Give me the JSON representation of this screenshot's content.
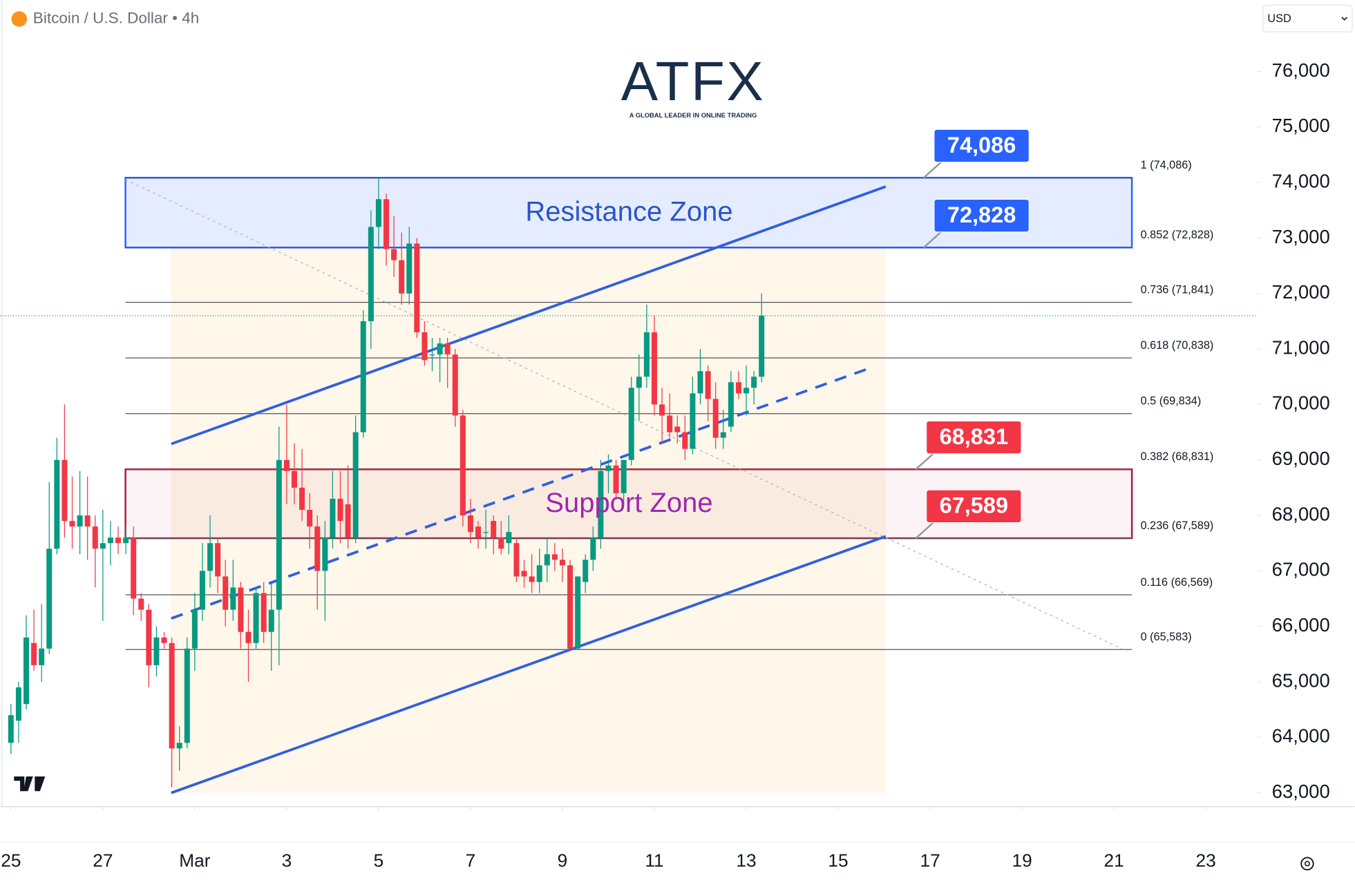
{
  "header": {
    "title": "Bitcoin / U.S. Dollar • 4h",
    "currency": "USD"
  },
  "logo": {
    "name": "ATFX",
    "tagline": "A GLOBAL LEADER IN ONLINE TRADING"
  },
  "chart_data": {
    "type": "candlestick",
    "x": [
      0,
      1,
      2,
      3,
      4,
      5,
      6,
      7,
      8,
      9,
      10,
      11,
      12,
      13,
      14,
      15,
      16,
      17,
      18,
      19,
      20,
      21,
      22,
      23,
      24,
      25,
      26,
      27,
      28,
      29,
      30,
      31,
      32,
      33,
      34,
      35,
      36,
      37,
      38,
      39,
      40,
      41,
      42,
      43,
      44,
      45,
      46,
      47,
      48,
      49,
      50,
      51,
      52,
      53,
      54,
      55,
      56,
      57,
      58,
      59,
      60,
      61,
      62,
      63,
      64,
      65,
      66,
      67,
      68,
      69,
      70,
      71,
      72,
      73,
      74,
      75,
      76,
      77,
      78,
      79,
      80,
      81,
      82,
      83,
      84,
      85,
      86,
      87,
      88,
      89,
      90,
      91,
      92,
      93,
      94,
      95,
      96,
      97,
      98
    ],
    "open": [
      63900,
      64300,
      64600,
      65700,
      65300,
      65600,
      67400,
      69000,
      67900,
      67800,
      68000,
      67800,
      67400,
      67500,
      67600,
      67500,
      67600,
      66500,
      66300,
      65300,
      65800,
      65700,
      63800,
      63900,
      65600,
      66300,
      67000,
      67500,
      66900,
      66300,
      66700,
      65900,
      65700,
      66600,
      65900,
      66300,
      69000,
      68800,
      68500,
      68100,
      67800,
      67000,
      67600,
      68300,
      68200,
      67600,
      69500,
      71500,
      73200,
      73700,
      72800,
      72600,
      72000,
      72900,
      71300,
      70900,
      70900,
      71100,
      70900,
      69800,
      68000,
      67800,
      67700,
      67900,
      67600,
      67500,
      67500,
      67000,
      66900,
      66800,
      67100,
      67300,
      67200,
      67100,
      65600,
      66800,
      67200,
      67600,
      68800,
      68900,
      68400,
      69000,
      70300,
      70500,
      71300,
      70000,
      69800,
      69600,
      69500,
      69200,
      70200,
      70600,
      70100,
      69400,
      69600,
      70400,
      70200,
      70300,
      70500
    ],
    "high": [
      64600,
      65000,
      66200,
      66300,
      66400,
      68600,
      69400,
      70000,
      68700,
      68800,
      68700,
      68000,
      68100,
      67900,
      67800,
      67800,
      67800,
      66600,
      66400,
      66000,
      65900,
      65800,
      64200,
      65800,
      66600,
      67500,
      68000,
      67600,
      67200,
      67200,
      66800,
      66300,
      66700,
      66800,
      66800,
      69600,
      70000,
      69300,
      69200,
      68400,
      68000,
      67900,
      68800,
      68800,
      68900,
      69800,
      71700,
      73500,
      74086,
      73800,
      73400,
      73100,
      73200,
      73000,
      71500,
      71200,
      71200,
      71200,
      71000,
      69900,
      68300,
      67900,
      68100,
      68000,
      67900,
      68000,
      67600,
      67200,
      67300,
      67400,
      67600,
      67500,
      67400,
      67200,
      66900,
      67300,
      67800,
      69000,
      69100,
      69000,
      69000,
      70500,
      70900,
      71800,
      71600,
      70300,
      70200,
      69800,
      69800,
      70500,
      71000,
      70700,
      70400,
      69900,
      70600,
      70600,
      70700,
      70600,
      72000
    ],
    "low": [
      63700,
      63900,
      64500,
      65200,
      65000,
      65500,
      67300,
      67600,
      67400,
      67300,
      67200,
      66700,
      66100,
      67100,
      67300,
      67300,
      66200,
      66100,
      64900,
      65100,
      65600,
      63100,
      63400,
      63800,
      65200,
      66100,
      66700,
      66600,
      66000,
      66100,
      65600,
      65000,
      65600,
      65700,
      65200,
      65300,
      68200,
      68200,
      67900,
      67400,
      66300,
      66100,
      67400,
      67500,
      67400,
      67500,
      69400,
      71000,
      72800,
      72500,
      72300,
      71800,
      71800,
      71200,
      70700,
      70600,
      70400,
      70300,
      69600,
      67800,
      67500,
      67400,
      67400,
      67300,
      67300,
      67300,
      66800,
      66700,
      66600,
      66600,
      66800,
      67000,
      66800,
      65600,
      65583,
      66600,
      67000,
      67400,
      68400,
      68300,
      68200,
      68900,
      69700,
      70300,
      69800,
      69300,
      69400,
      69300,
      69000,
      69100,
      70000,
      69700,
      69200,
      69200,
      69500,
      70100,
      69800,
      70000,
      70400
    ],
    "close": [
      64400,
      64900,
      65800,
      65300,
      65600,
      67400,
      69000,
      67900,
      67800,
      68000,
      67800,
      67400,
      67500,
      67600,
      67500,
      67600,
      66500,
      66300,
      65300,
      65800,
      65700,
      63800,
      63900,
      65600,
      66300,
      67000,
      67500,
      66900,
      66300,
      66700,
      65900,
      65700,
      66600,
      65900,
      66300,
      69000,
      68800,
      68500,
      68100,
      67800,
      67000,
      67600,
      68300,
      67900,
      67600,
      69500,
      71500,
      73200,
      73700,
      72800,
      72600,
      72000,
      72900,
      71300,
      70800,
      70900,
      71100,
      70900,
      69800,
      68000,
      67700,
      67600,
      67700,
      67600,
      67400,
      67700,
      66900,
      66900,
      66800,
      67100,
      67300,
      67200,
      67100,
      65600,
      66900,
      67200,
      67600,
      68800,
      68900,
      68400,
      69000,
      70300,
      70500,
      71300,
      70000,
      69800,
      69500,
      69500,
      69200,
      70200,
      70600,
      70100,
      69400,
      69500,
      70400,
      70200,
      70300,
      70500,
      71600
    ],
    "up_color": "#089981",
    "down_color": "#f23645",
    "xlim": [
      -1.4,
      162.7
    ],
    "xticks": [
      {
        "value": 0,
        "label": "25"
      },
      {
        "value": 12,
        "label": "27"
      },
      {
        "value": 24,
        "label": "Mar"
      },
      {
        "value": 36,
        "label": "3"
      },
      {
        "value": 48,
        "label": "5"
      },
      {
        "value": 60,
        "label": "7"
      },
      {
        "value": 72,
        "label": "9"
      },
      {
        "value": 84,
        "label": "11"
      },
      {
        "value": 96,
        "label": "13"
      },
      {
        "value": 108,
        "label": "15"
      },
      {
        "value": 120,
        "label": "17"
      },
      {
        "value": 132,
        "label": "19"
      },
      {
        "value": 144,
        "label": "21"
      },
      {
        "value": 156,
        "label": "23"
      }
    ],
    "ylim": [
      62750,
      77290
    ],
    "yticks": [
      {
        "value": 63000,
        "label": "63,000"
      },
      {
        "value": 64000,
        "label": "64,000"
      },
      {
        "value": 65000,
        "label": "65,000"
      },
      {
        "value": 66000,
        "label": "66,000"
      },
      {
        "value": 67000,
        "label": "67,000"
      },
      {
        "value": 68000,
        "label": "68,000"
      },
      {
        "value": 69000,
        "label": "69,000"
      },
      {
        "value": 70000,
        "label": "70,000"
      },
      {
        "value": 71000,
        "label": "71,000"
      },
      {
        "value": 72000,
        "label": "72,000"
      },
      {
        "value": 73000,
        "label": "73,000"
      },
      {
        "value": 74000,
        "label": "74,000"
      },
      {
        "value": 75000,
        "label": "75,000"
      },
      {
        "value": 76000,
        "label": "76,000"
      }
    ],
    "grid": false,
    "fib_levels": [
      {
        "value": 74086,
        "label": "1 (74,086)"
      },
      {
        "value": 72828,
        "label": "0.852 (72,828)"
      },
      {
        "value": 71841,
        "label": "0.736 (71,841)"
      },
      {
        "value": 70838,
        "label": "0.618 (70,838)"
      },
      {
        "value": 69834,
        "label": "0.5 (69,834)"
      },
      {
        "value": 68831,
        "label": "0.382 (68,831)"
      },
      {
        "value": 67589,
        "label": "0.236 (67,589)"
      },
      {
        "value": 66569,
        "label": "0.116 (66,569)"
      },
      {
        "value": 65583,
        "label": "0 (65,583)"
      }
    ],
    "zones": [
      {
        "label": "Resistance Zone",
        "range": [
          72828,
          74086
        ],
        "color": "#2962ff",
        "text_color": "#2a54c8"
      },
      {
        "label": "Support Zone",
        "range": [
          67589,
          68831
        ],
        "color": "#b2183f",
        "text_color": "#9c27b0"
      }
    ],
    "price_labels": [
      {
        "value": 74086,
        "label": "74,086",
        "color": "#2962ff"
      },
      {
        "value": 72828,
        "label": "72,828",
        "color": "#2962ff"
      },
      {
        "value": 68831,
        "label": "68,831",
        "color": "#f23645"
      },
      {
        "value": 67589,
        "label": "67,589",
        "color": "#f23645"
      }
    ]
  }
}
